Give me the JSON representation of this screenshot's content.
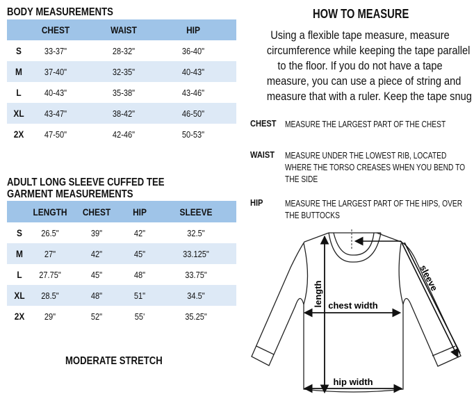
{
  "body_measurements": {
    "title": "BODY MEASUREMENTS",
    "columns": [
      "CHEST",
      "WAIST",
      "HIP"
    ],
    "rows": [
      {
        "size": "S",
        "values": [
          "33-37\"",
          "28-32\"",
          "36-40\""
        ]
      },
      {
        "size": "M",
        "values": [
          "37-40\"",
          "32-35\"",
          "40-43\""
        ]
      },
      {
        "size": "L",
        "values": [
          "40-43\"",
          "35-38\"",
          "43-46\""
        ]
      },
      {
        "size": "XL",
        "values": [
          "43-47\"",
          "38-42\"",
          "46-50\""
        ]
      },
      {
        "size": "2X",
        "values": [
          "47-50\"",
          "42-46\"",
          "50-53\""
        ]
      }
    ]
  },
  "garment_measurements": {
    "title_line1": "ADULT LONG SLEEVE CUFFED TEE",
    "title_line2": "GARMENT MEASUREMENTS",
    "columns": [
      "LENGTH",
      "CHEST",
      "HIP",
      "SLEEVE"
    ],
    "rows": [
      {
        "size": "S",
        "values": [
          "26.5\"",
          "39\"",
          "42\"",
          "32.5\""
        ]
      },
      {
        "size": "M",
        "values": [
          "27\"",
          "42\"",
          "45\"",
          "33.125\""
        ]
      },
      {
        "size": "L",
        "values": [
          "27.75\"",
          "45\"",
          "48\"",
          "33.75\""
        ]
      },
      {
        "size": "XL",
        "values": [
          "28.5\"",
          "48\"",
          "51\"",
          "34.5\""
        ]
      },
      {
        "size": "2X",
        "values": [
          "29\"",
          "52\"",
          "55'",
          "35.25\""
        ]
      }
    ],
    "stretch": "MODERATE STRETCH"
  },
  "how_to_measure": {
    "title": "HOW TO MEASURE",
    "paragraph_lines": [
      "Using a flexible tape measure, measure",
      "circumference while keeping the tape parallel",
      "to the floor.  If you do not have a tape",
      "measure, you can use a piece of string and",
      "measure that with a ruler. Keep the tape snug"
    ],
    "instructions": [
      {
        "label": "CHEST",
        "lines": [
          "MEASURE THE LARGEST PART OF THE CHEST"
        ]
      },
      {
        "label": "WAIST",
        "lines": [
          "MEASURE UNDER THE LOWEST RIB, LOCATED",
          "WHERE THE TORSO CREASES WHEN YOU BEND TO",
          "THE SIDE"
        ]
      },
      {
        "label": "HIP",
        "lines": [
          "MEASURE THE LARGEST PART OF THE HIPS, OVER",
          "THE BUTTOCKS"
        ]
      }
    ]
  },
  "diagram": {
    "length_label": "length",
    "chest_width_label": "chest width",
    "hip_width_label": "hip width",
    "sleeve_label": "sleeve"
  },
  "colors": {
    "header_blue": "#9fc4e8",
    "row_band": "#dde9f6"
  }
}
